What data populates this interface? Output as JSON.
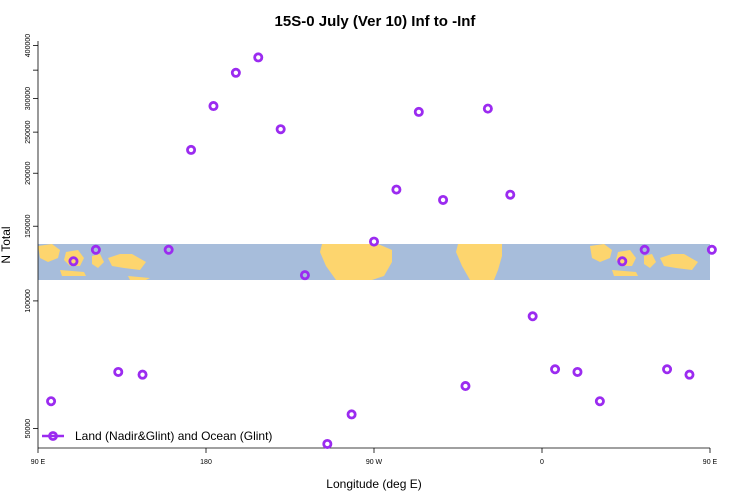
{
  "chart_data": {
    "type": "scatter",
    "title": "15S-0 July (Ver 10)   Inf to -Inf",
    "xlabel": "Longitude (deg E)",
    "ylabel": "N Total",
    "x_tick_labels": [
      "90 E",
      "180",
      "90 W",
      "0",
      "90 E",
      "180"
    ],
    "y_tick_labels": [
      "50000",
      "100000",
      "150000",
      "200000",
      "250000",
      "300000",
      "400000"
    ],
    "xlim": [
      90,
      450
    ],
    "y_scale": "log",
    "ylim": [
      45000,
      410000
    ],
    "grid": false,
    "legend_position": "bottom-left",
    "map_band": {
      "lat_range": "15S-0",
      "ocean_color": "#a7bddb",
      "land_color": "#fdd56e"
    },
    "series": [
      {
        "name": "Land (Nadir&Glint) and Ocean (Glint)",
        "color": "#9b2bf0",
        "x": [
          97,
          109,
          121,
          133,
          146,
          160,
          172,
          184,
          196,
          208,
          220,
          233,
          245,
          258,
          270,
          282,
          294,
          307,
          319,
          331,
          343,
          355,
          367,
          379,
          391,
          403,
          415,
          427,
          439,
          451
        ],
        "y": [
          58000,
          124000,
          132000,
          68000,
          67000,
          132000,
          227000,
          288000,
          345000,
          375000,
          254000,
          115000,
          46000,
          54000,
          138000,
          183000,
          279000,
          173000,
          63000,
          284000,
          178000,
          92000,
          69000,
          68000,
          58000,
          124000,
          132000,
          69000,
          67000,
          132000
        ]
      }
    ]
  }
}
